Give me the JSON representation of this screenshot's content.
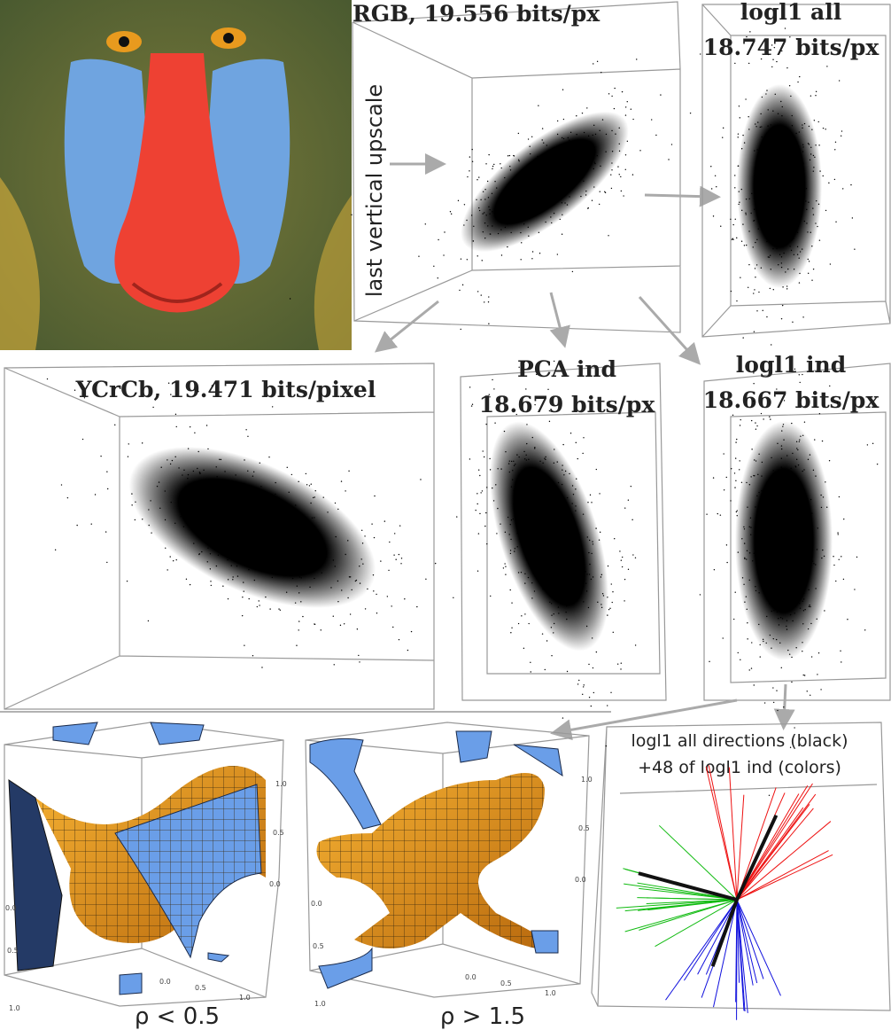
{
  "panels": {
    "rgb": {
      "title": "RGB, 19.556 bits/px",
      "side_label": "last vertical upscale"
    },
    "logl1_all": {
      "title": [
        "logl1 all",
        "18.747 bits/px"
      ]
    },
    "ycrcb": {
      "title": "YCrCb, 19.471 bits/pixel"
    },
    "pca_ind": {
      "title": [
        "PCA ind",
        "18.679 bits/px"
      ]
    },
    "logl1_ind": {
      "title": [
        "logl1 ind",
        "18.667 bits/px"
      ]
    }
  },
  "surfaces": [
    {
      "caption": "ρ < 0.5",
      "right_ticks": [
        "1.0",
        "0.5",
        "0.0"
      ],
      "left_ticks": [
        "0.0",
        "0.5",
        "1.0"
      ],
      "bottom_ticks": [
        "0.0",
        "0.5",
        "1.0"
      ]
    },
    {
      "caption": "ρ > 1.5",
      "right_ticks": [
        "1.0",
        "0.5",
        "0.0"
      ],
      "left_ticks": [
        "0.0",
        "0.5",
        "1.0"
      ],
      "bottom_ticks": [
        "0.0",
        "0.5",
        "1.0"
      ]
    }
  ],
  "directions": {
    "caption": [
      "logl1 all directions (black)",
      "+48 of logl1 ind (colors)"
    ]
  }
}
